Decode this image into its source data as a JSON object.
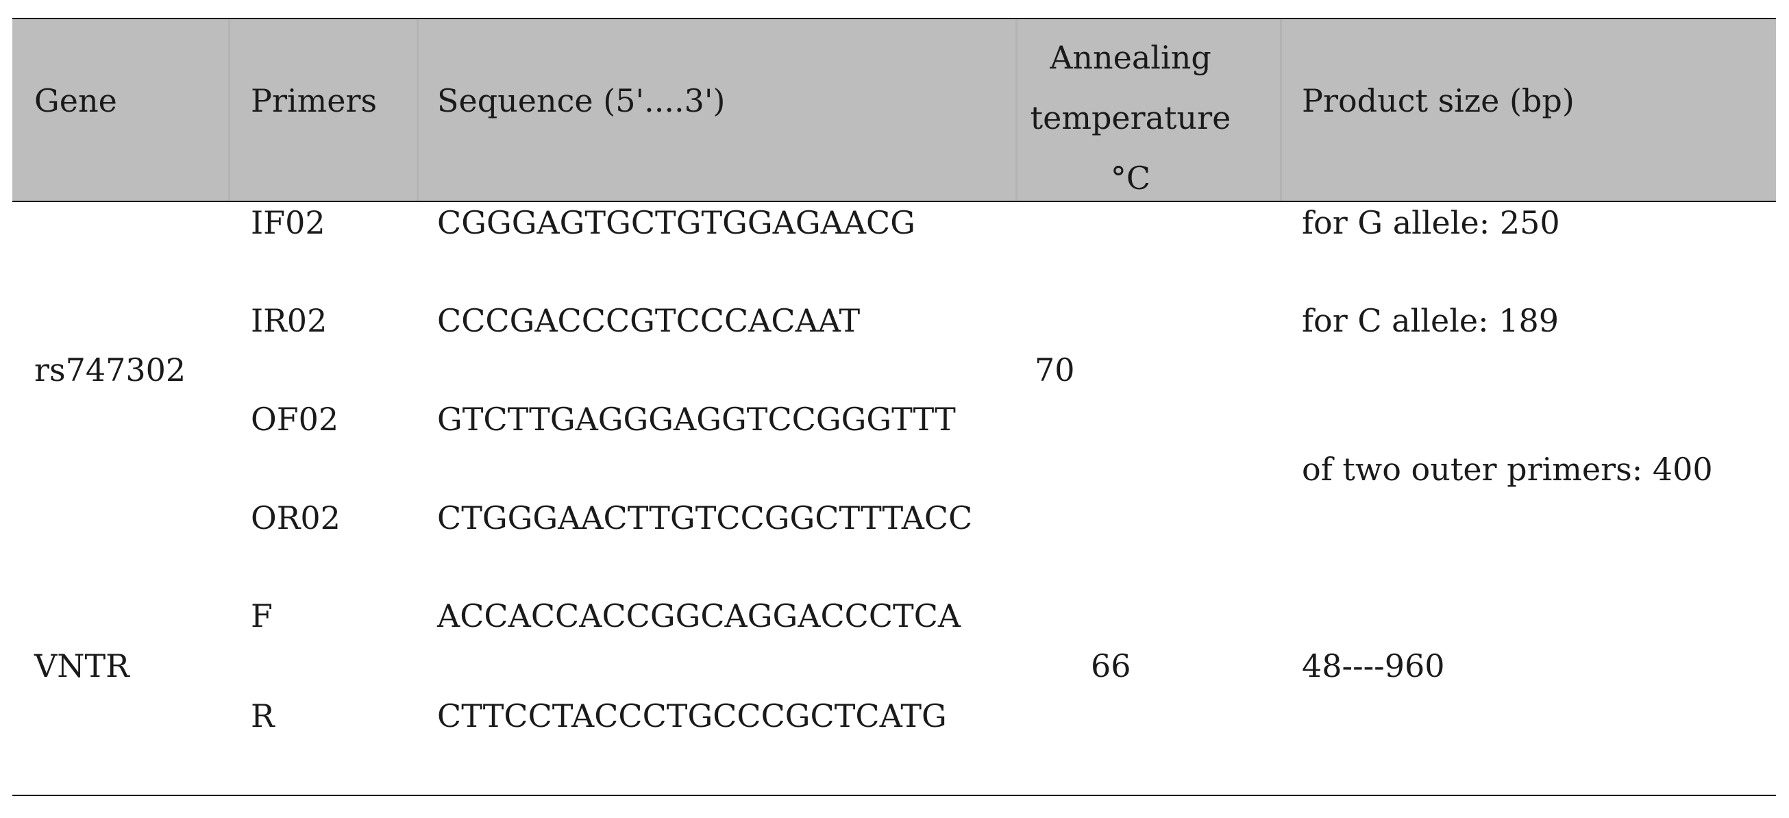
{
  "table": {
    "headers": {
      "gene": "Gene",
      "primers": "Primers",
      "sequence": "Sequence (5'....3')",
      "annealing_line1": "Annealing",
      "annealing_line2": "temperature",
      "annealing_line3": "°C",
      "product": "Product size (bp)"
    },
    "groups": [
      {
        "gene": "rs747302",
        "annealing": "70",
        "primers": [
          {
            "name": "IF02",
            "sequence": "CGGGAGTGCTGTGGAGAACG"
          },
          {
            "name": "IR02",
            "sequence": "CCCGACCCGTCCCACAAT"
          },
          {
            "name": "OF02",
            "sequence": "GTCTTGAGGGAGGTCCGGGTTT"
          },
          {
            "name": "OR02",
            "sequence": "CTGGGAACTTGTCCGGCTTTACC"
          }
        ],
        "products": [
          "for G allele: 250",
          "for C allele: 189",
          "of two outer primers: 400"
        ]
      },
      {
        "gene": "VNTR",
        "annealing": "66",
        "primers": [
          {
            "name": "F",
            "sequence": "ACCACCACCGGCAGGACCCTCA"
          },
          {
            "name": "R",
            "sequence": "CTTCCTACCCTGCCCGCTCATG"
          }
        ],
        "products": [
          "48----960"
        ]
      }
    ]
  }
}
